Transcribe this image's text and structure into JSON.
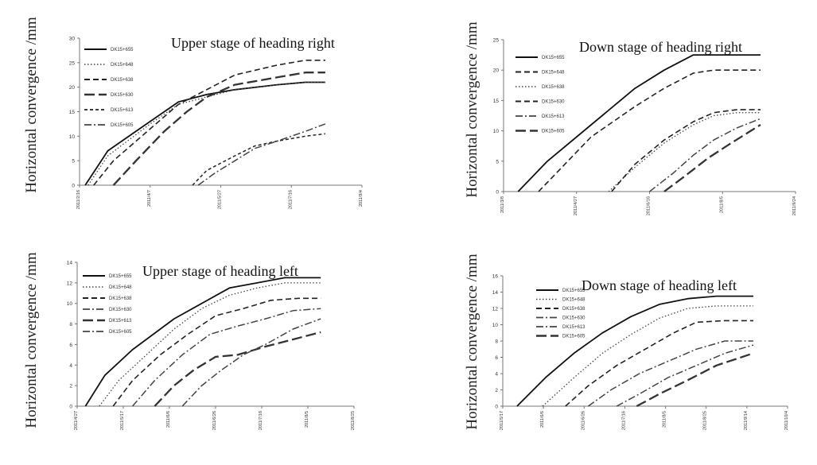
{
  "chart_data": [
    {
      "type": "line",
      "title": "Upper stage of heading right",
      "ylabel": "Horizontal convergence /mm",
      "xlabel": "",
      "ylim": [
        0,
        30
      ],
      "yticks": [
        "0",
        "5",
        "10",
        "15",
        "20",
        "25",
        "30"
      ],
      "xticks": [
        "2011/2/16",
        "2011/4/7",
        "2011/5/27",
        "2011/7/16",
        "2011/9/4"
      ],
      "grid": false,
      "legend": "top-left",
      "series": [
        {
          "name": "DK15+655",
          "style": "solid",
          "x": [
            0.02,
            0.1,
            0.25,
            0.35,
            0.45,
            0.55,
            0.7,
            0.8,
            0.87
          ],
          "values": [
            0,
            7,
            13,
            17,
            18.5,
            19.5,
            20.5,
            21,
            21
          ]
        },
        {
          "name": "DK15+648",
          "style": "dotted",
          "x": [
            0.03,
            0.1,
            0.25,
            0.35,
            0.45,
            0.55,
            0.7,
            0.8,
            0.87
          ],
          "values": [
            0,
            6,
            12.5,
            16.5,
            18,
            19.5,
            20.5,
            21,
            21
          ]
        },
        {
          "name": "DK15+638",
          "style": "dashed",
          "x": [
            0.05,
            0.12,
            0.25,
            0.35,
            0.45,
            0.55,
            0.7,
            0.8,
            0.87
          ],
          "values": [
            0,
            5,
            11.5,
            16.5,
            19.5,
            22.5,
            24.5,
            25.5,
            25.5
          ]
        },
        {
          "name": "DK15+630",
          "style": "longdash",
          "x": [
            0.12,
            0.2,
            0.3,
            0.38,
            0.45,
            0.55,
            0.7,
            0.8,
            0.87
          ],
          "values": [
            0,
            5,
            11,
            15,
            18,
            20.5,
            22,
            23,
            23
          ]
        },
        {
          "name": "DK15+613",
          "style": "shortdash",
          "x": [
            0.4,
            0.45,
            0.55,
            0.62,
            0.7,
            0.8,
            0.87
          ],
          "values": [
            0,
            3,
            6,
            8,
            9,
            10,
            10.5
          ]
        },
        {
          "name": "DK15+605",
          "style": "dashdot",
          "x": [
            0.42,
            0.48,
            0.55,
            0.62,
            0.7,
            0.8,
            0.87
          ],
          "values": [
            0,
            2.5,
            5,
            7.5,
            9,
            11,
            12.5
          ]
        }
      ]
    },
    {
      "type": "line",
      "title": "Down stage of heading right",
      "ylabel": "Horizontal convergence /mm",
      "xlabel": "",
      "ylim": [
        0,
        25
      ],
      "yticks": [
        "0",
        "5",
        "10",
        "15",
        "20",
        "25"
      ],
      "xticks": [
        "2011/3/8",
        "2011/4/27",
        "2011/6/16",
        "2011/8/5",
        "2011/9/24"
      ],
      "grid": false,
      "legend": "top-left",
      "series": [
        {
          "name": "DK15+655",
          "style": "solid",
          "x": [
            0.05,
            0.15,
            0.3,
            0.45,
            0.55,
            0.65,
            0.72,
            0.8,
            0.88
          ],
          "values": [
            0,
            5,
            11,
            17,
            20,
            22.5,
            22.5,
            22.5,
            22.5
          ]
        },
        {
          "name": "DK15+648",
          "style": "dashed",
          "x": [
            0.12,
            0.2,
            0.3,
            0.45,
            0.55,
            0.65,
            0.72,
            0.8,
            0.88
          ],
          "values": [
            0,
            4,
            9,
            14,
            17,
            19.5,
            20,
            20,
            20
          ]
        },
        {
          "name": "DK15+638",
          "style": "dotted",
          "x": [
            0.36,
            0.45,
            0.55,
            0.65,
            0.72,
            0.8,
            0.88
          ],
          "values": [
            0,
            4,
            8,
            11,
            12.5,
            13,
            13
          ]
        },
        {
          "name": "DK15+630",
          "style": "dashed",
          "x": [
            0.37,
            0.45,
            0.55,
            0.65,
            0.72,
            0.8,
            0.88
          ],
          "values": [
            0,
            4.5,
            8.5,
            11.5,
            13,
            13.5,
            13.5
          ]
        },
        {
          "name": "DK15+613",
          "style": "dashdot",
          "x": [
            0.5,
            0.58,
            0.65,
            0.72,
            0.8,
            0.88
          ],
          "values": [
            0,
            3,
            6,
            8.5,
            10.5,
            12
          ]
        },
        {
          "name": "DK15+605",
          "style": "longdash",
          "x": [
            0.55,
            0.62,
            0.7,
            0.78,
            0.88
          ],
          "values": [
            0,
            2.5,
            5.5,
            8,
            11
          ]
        }
      ]
    },
    {
      "type": "line",
      "title": "Upper stage of heading left",
      "ylabel": "Horizontal convergence /mm",
      "xlabel": "",
      "ylim": [
        0,
        14
      ],
      "yticks": [
        "0",
        "2",
        "4",
        "6",
        "8",
        "10",
        "12",
        "14"
      ],
      "xticks": [
        "2011/4/27",
        "2011/5/17",
        "2011/6/6",
        "2011/6/26",
        "2011/7/16",
        "2011/8/5",
        "2011/8/25"
      ],
      "grid": false,
      "legend": "top-left",
      "series": [
        {
          "name": "DK15+655",
          "style": "solid",
          "x": [
            0.03,
            0.1,
            0.2,
            0.35,
            0.45,
            0.55,
            0.65,
            0.75,
            0.88
          ],
          "values": [
            0,
            3,
            5.5,
            8.5,
            10,
            11.5,
            12,
            12.5,
            12.5
          ]
        },
        {
          "name": "DK15+648",
          "style": "dotted",
          "x": [
            0.08,
            0.15,
            0.25,
            0.35,
            0.45,
            0.55,
            0.65,
            0.75,
            0.88
          ],
          "values": [
            0,
            2.5,
            5,
            7.5,
            9.5,
            10.8,
            11.5,
            12,
            12
          ]
        },
        {
          "name": "DK15+638",
          "style": "dashed",
          "x": [
            0.13,
            0.2,
            0.3,
            0.4,
            0.5,
            0.6,
            0.7,
            0.8,
            0.88
          ],
          "values": [
            0,
            2.5,
            5,
            7,
            8.8,
            9.5,
            10.3,
            10.5,
            10.5
          ]
        },
        {
          "name": "DK15+630",
          "style": "dashdot",
          "x": [
            0.2,
            0.28,
            0.38,
            0.48,
            0.58,
            0.68,
            0.78,
            0.88
          ],
          "values": [
            0,
            2.5,
            5,
            7,
            7.8,
            8.5,
            9.3,
            9.5
          ]
        },
        {
          "name": "DK15+613",
          "style": "longdash",
          "x": [
            0.28,
            0.35,
            0.42,
            0.5,
            0.58,
            0.68,
            0.78,
            0.88
          ],
          "values": [
            0,
            2,
            3.5,
            4.8,
            5,
            5.8,
            6.5,
            7.2
          ]
        },
        {
          "name": "DK15+605",
          "style": "dashdot",
          "x": [
            0.38,
            0.45,
            0.52,
            0.6,
            0.68,
            0.78,
            0.88
          ],
          "values": [
            0,
            2,
            3.5,
            5,
            6,
            7.5,
            8.5
          ]
        }
      ]
    },
    {
      "type": "line",
      "title": "Down stage of heading left",
      "ylabel": "Horizontal convergence /mm",
      "xlabel": "",
      "ylim": [
        0,
        16
      ],
      "yticks": [
        "0",
        "2",
        "4",
        "6",
        "8",
        "10",
        "12",
        "14",
        "16"
      ],
      "xticks": [
        "2011/5/17",
        "2011/6/6",
        "2011/6/26",
        "2011/7/16",
        "2011/8/5",
        "2011/8/25",
        "2011/9/14",
        "2011/10/4"
      ],
      "grid": false,
      "legend": "top-left",
      "series": [
        {
          "name": "DK15+655",
          "style": "solid",
          "x": [
            0.05,
            0.15,
            0.25,
            0.35,
            0.45,
            0.55,
            0.65,
            0.75,
            0.88
          ],
          "values": [
            0,
            3.5,
            6.5,
            9,
            11,
            12.5,
            13.2,
            13.5,
            13.5
          ]
        },
        {
          "name": "DK15+648",
          "style": "dotted",
          "x": [
            0.14,
            0.25,
            0.35,
            0.45,
            0.55,
            0.65,
            0.75,
            0.88
          ],
          "values": [
            0,
            3.5,
            6.5,
            8.8,
            10.8,
            12,
            12.3,
            12.3
          ]
        },
        {
          "name": "DK15+638",
          "style": "dashed",
          "x": [
            0.22,
            0.3,
            0.4,
            0.5,
            0.6,
            0.68,
            0.78,
            0.88
          ],
          "values": [
            0,
            2.5,
            5,
            7,
            9,
            10.3,
            10.5,
            10.5
          ]
        },
        {
          "name": "DK15+630",
          "style": "dashdot",
          "x": [
            0.3,
            0.38,
            0.48,
            0.58,
            0.68,
            0.78,
            0.88
          ],
          "values": [
            0,
            2,
            4,
            5.5,
            7,
            8,
            8
          ]
        },
        {
          "name": "DK15+613",
          "style": "dashdot",
          "x": [
            0.4,
            0.48,
            0.58,
            0.68,
            0.78,
            0.88
          ],
          "values": [
            0,
            1.5,
            3.5,
            5,
            6.5,
            7.5
          ]
        },
        {
          "name": "DK15+605",
          "style": "longdash",
          "x": [
            0.47,
            0.55,
            0.65,
            0.75,
            0.88
          ],
          "values": [
            0,
            1.5,
            3.2,
            5,
            6.5
          ]
        }
      ]
    }
  ]
}
